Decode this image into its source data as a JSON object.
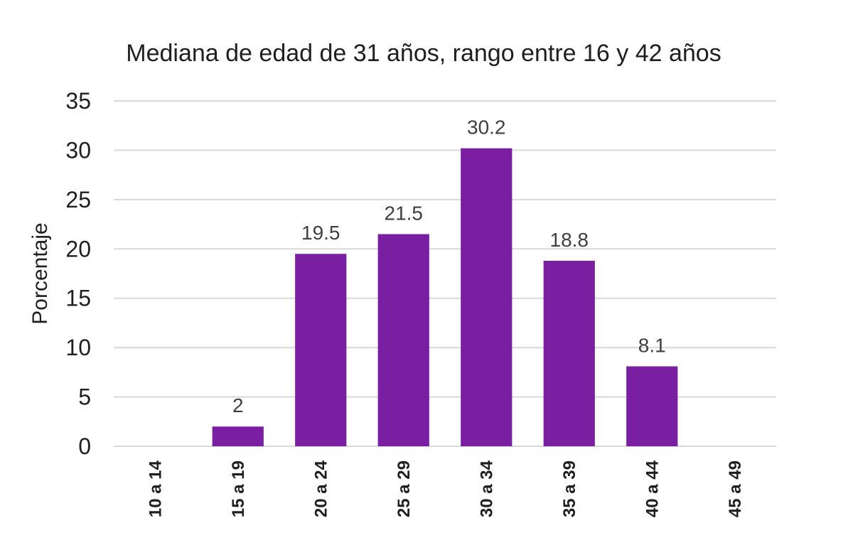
{
  "chart_data": {
    "type": "bar",
    "title": "Mediana de edad de 31 años,  rango entre 16  y 42 años",
    "xlabel": "",
    "ylabel": "Porcentaje",
    "categories": [
      "10 a 14",
      "15 a 19",
      "20 a 24",
      "25 a 29",
      "30 a 34",
      "35 a 39",
      "40 a 44",
      "45 a 49"
    ],
    "values": [
      0,
      2,
      19.5,
      21.5,
      30.2,
      18.8,
      8.1,
      0
    ],
    "data_labels": [
      "",
      "2",
      "19.5",
      "21.5",
      "30.2",
      "18.8",
      "8.1",
      ""
    ],
    "ylim": [
      0,
      35
    ],
    "yticks": [
      0,
      5,
      10,
      15,
      20,
      25,
      30,
      35
    ],
    "grid": true,
    "legend": "none",
    "colors": {
      "bar": "#7B1FA2",
      "grid": "#D9D9D9"
    }
  }
}
